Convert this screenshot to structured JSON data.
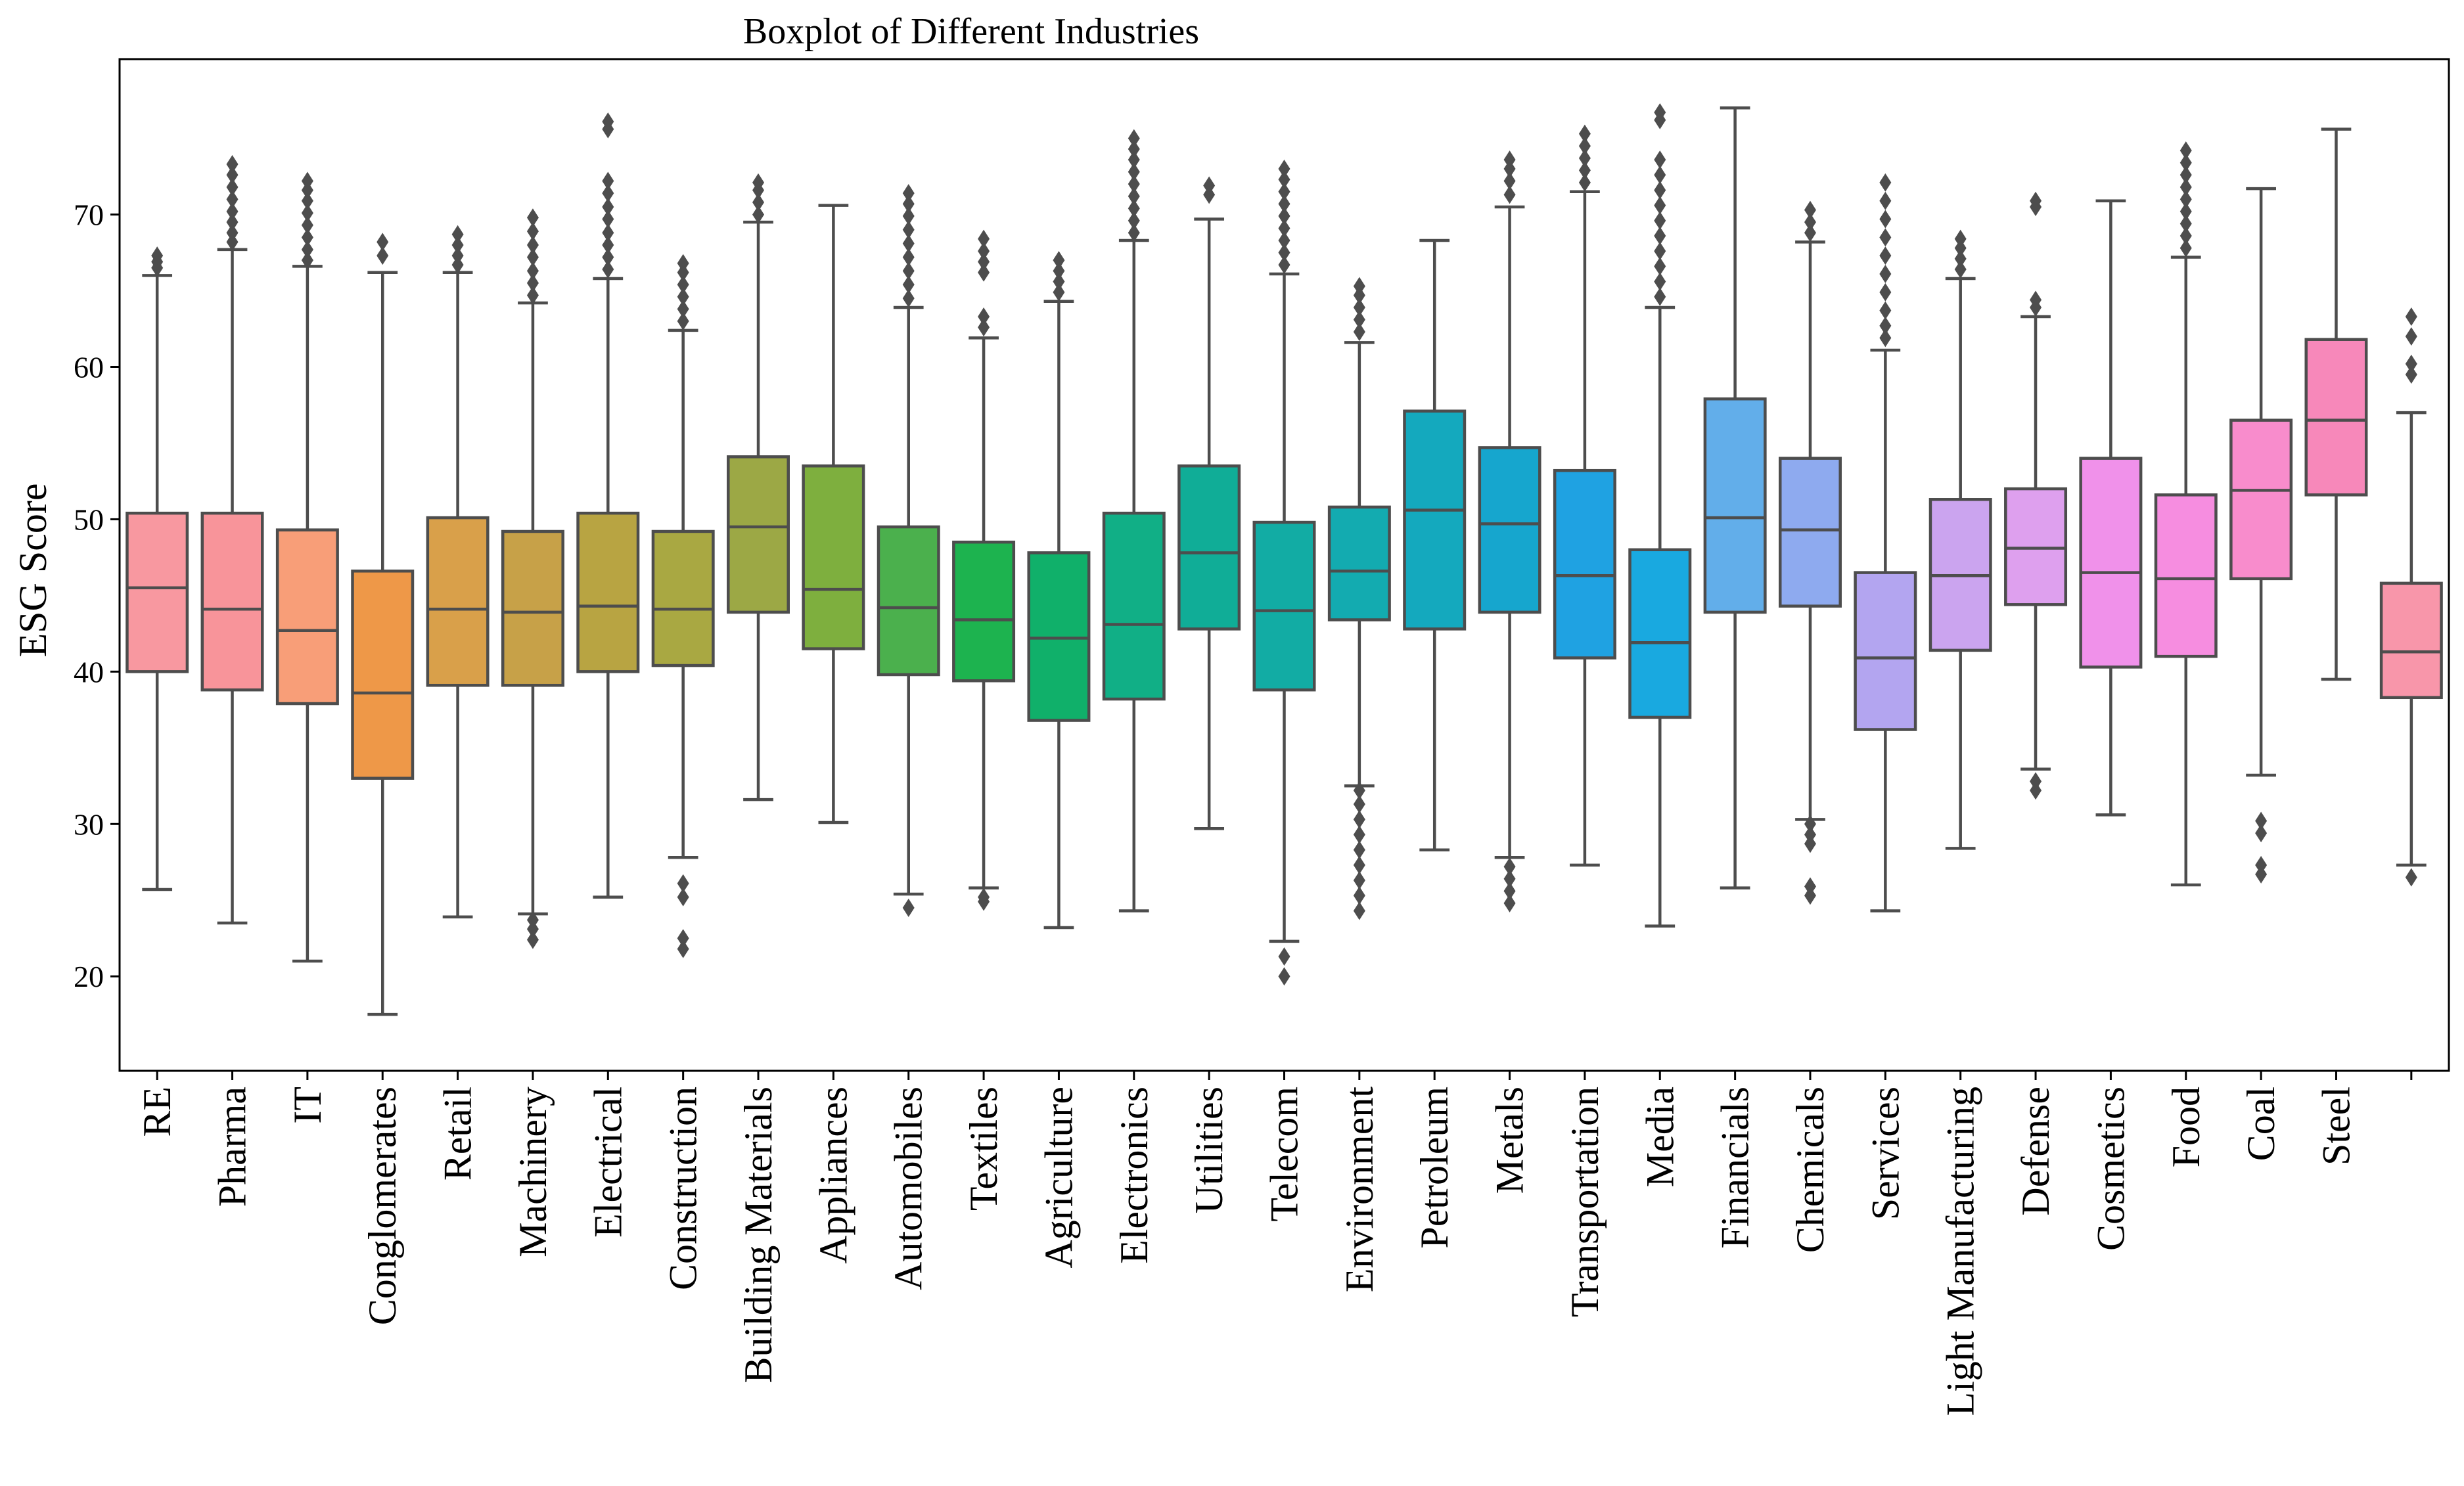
{
  "chart_data": {
    "type": "boxplot",
    "title": "Boxplot of Different Industries",
    "xlabel": "",
    "ylabel": "ESG Score",
    "ylim": [
      13.8,
      80.2
    ],
    "yticks": [
      20,
      30,
      40,
      50,
      60,
      70
    ],
    "grid": false,
    "legend": "none",
    "categories": [
      "RE",
      "Pharma",
      "IT",
      "Conglomerates",
      "Retail",
      "Machinery",
      "Electrical",
      "Construction",
      "Building Materials",
      "Appliances",
      "Automobiles",
      "Textiles",
      "Agriculture",
      "Electronics",
      "Utilities",
      "Telecom",
      "Environment",
      "Petroleum",
      "Metals",
      "Transportation",
      "Media",
      "Financials",
      "Chemicals",
      "Services",
      "Light Manufacturing",
      "Defense",
      "Cosmetics",
      "Food",
      "Coal",
      "Steel",
      ""
    ],
    "colors": [
      "#F898A0",
      "#F8949A",
      "#F89E78",
      "#EE9848",
      "#D9A04A",
      "#C7A148",
      "#B8A442",
      "#A9A842",
      "#9CA845",
      "#7EAF3E",
      "#4BB04D",
      "#1DB34F",
      "#10B06A",
      "#11AF86",
      "#10AD97",
      "#12ACA4",
      "#13ABB0",
      "#14A9BE",
      "#16A6CE",
      "#1FA2E2",
      "#19A9E0",
      "#62AEEA",
      "#8EAAEF",
      "#B3A5F0",
      "#CBA4EF",
      "#DEA0EE",
      "#F091EA",
      "#F68DE0",
      "#F88CCC",
      "#F788BA",
      "#F896AA"
    ],
    "boxes": [
      {
        "q1": 40.0,
        "median": 45.5,
        "q3": 50.4,
        "whisker_low": 25.7,
        "whisker_high": 66.0,
        "outliers": [
          66.5,
          66.9,
          67.3
        ]
      },
      {
        "q1": 38.8,
        "median": 44.1,
        "q3": 50.4,
        "whisker_low": 23.5,
        "whisker_high": 67.7,
        "outliers": [
          68.2,
          68.8,
          69.5,
          70.2,
          71.0,
          71.8,
          72.6,
          73.3
        ]
      },
      {
        "q1": 37.9,
        "median": 42.7,
        "q3": 49.3,
        "whisker_low": 21.0,
        "whisker_high": 66.6,
        "outliers": [
          67.0,
          67.7,
          68.5,
          69.3,
          70.1,
          70.9,
          71.6,
          72.2
        ]
      },
      {
        "q1": 33.0,
        "median": 38.6,
        "q3": 46.6,
        "whisker_low": 17.5,
        "whisker_high": 66.2,
        "outliers": [
          67.3,
          68.2
        ]
      },
      {
        "q1": 39.1,
        "median": 44.1,
        "q3": 50.1,
        "whisker_low": 23.9,
        "whisker_high": 66.2,
        "outliers": [
          66.7,
          67.3,
          68.0,
          68.7
        ]
      },
      {
        "q1": 39.1,
        "median": 43.9,
        "q3": 49.2,
        "whisker_low": 24.1,
        "whisker_high": 64.2,
        "outliers": [
          22.4,
          23.1,
          23.7,
          64.7,
          65.5,
          66.3,
          67.2,
          68.0,
          68.9,
          69.8
        ]
      },
      {
        "q1": 40.0,
        "median": 44.3,
        "q3": 50.4,
        "whisker_low": 25.2,
        "whisker_high": 65.8,
        "outliers": [
          66.4,
          67.2,
          68.0,
          68.8,
          69.7,
          70.5,
          71.4,
          72.2,
          75.6,
          76.1
        ]
      },
      {
        "q1": 40.4,
        "median": 44.1,
        "q3": 49.2,
        "whisker_low": 27.8,
        "whisker_high": 62.4,
        "outliers": [
          21.8,
          22.5,
          25.2,
          26.1,
          63.0,
          63.8,
          64.6,
          65.4,
          66.2,
          66.8
        ]
      },
      {
        "q1": 43.9,
        "median": 49.5,
        "q3": 54.1,
        "whisker_low": 31.6,
        "whisker_high": 69.5,
        "outliers": [
          70.0,
          70.8,
          71.6,
          72.1
        ]
      },
      {
        "q1": 41.5,
        "median": 45.4,
        "q3": 53.5,
        "whisker_low": 30.1,
        "whisker_high": 70.6,
        "outliers": []
      },
      {
        "q1": 39.8,
        "median": 44.2,
        "q3": 49.5,
        "whisker_low": 25.4,
        "whisker_high": 63.9,
        "outliers": [
          24.5,
          64.5,
          65.4,
          66.3,
          67.2,
          68.1,
          69.0,
          69.9,
          70.7,
          71.4
        ]
      },
      {
        "q1": 39.4,
        "median": 43.4,
        "q3": 48.5,
        "whisker_low": 25.8,
        "whisker_high": 61.9,
        "outliers": [
          24.9,
          25.2,
          62.6,
          63.3,
          66.2,
          66.9,
          67.6,
          68.4
        ]
      },
      {
        "q1": 36.8,
        "median": 42.2,
        "q3": 47.8,
        "whisker_low": 23.2,
        "whisker_high": 64.3,
        "outliers": [
          64.9,
          65.6,
          66.3,
          67.0
        ]
      },
      {
        "q1": 38.2,
        "median": 43.1,
        "q3": 50.4,
        "whisker_low": 24.3,
        "whisker_high": 68.3,
        "outliers": [
          68.8,
          69.6,
          70.4,
          71.2,
          72.0,
          72.8,
          73.6,
          74.3,
          75.0
        ]
      },
      {
        "q1": 42.8,
        "median": 47.8,
        "q3": 53.5,
        "whisker_low": 29.7,
        "whisker_high": 69.7,
        "outliers": [
          71.3,
          71.9
        ]
      },
      {
        "q1": 38.8,
        "median": 44.0,
        "q3": 49.8,
        "whisker_low": 22.3,
        "whisker_high": 66.1,
        "outliers": [
          20.0,
          21.3,
          66.7,
          67.5,
          68.3,
          69.1,
          69.9,
          70.7,
          71.5,
          72.3,
          73.0
        ]
      },
      {
        "q1": 43.4,
        "median": 46.6,
        "q3": 50.8,
        "whisker_low": 32.5,
        "whisker_high": 61.6,
        "outliers": [
          24.3,
          25.3,
          26.3,
          27.3,
          28.3,
          29.3,
          30.3,
          31.3,
          32.2,
          62.3,
          63.1,
          63.9,
          64.7,
          65.3
        ]
      },
      {
        "q1": 42.8,
        "median": 50.6,
        "q3": 57.1,
        "whisker_low": 28.3,
        "whisker_high": 68.3,
        "outliers": []
      },
      {
        "q1": 43.9,
        "median": 49.7,
        "q3": 54.7,
        "whisker_low": 27.8,
        "whisker_high": 70.5,
        "outliers": [
          24.8,
          25.6,
          26.4,
          27.2,
          71.3,
          72.2,
          73.0,
          73.6
        ]
      },
      {
        "q1": 40.9,
        "median": 46.3,
        "q3": 53.2,
        "whisker_low": 27.3,
        "whisker_high": 71.5,
        "outliers": [
          72.1,
          72.9,
          73.7,
          74.5,
          75.3
        ]
      },
      {
        "q1": 37.0,
        "median": 41.9,
        "q3": 48.0,
        "whisker_low": 23.3,
        "whisker_high": 63.9,
        "outliers": [
          64.6,
          65.6,
          66.6,
          67.6,
          68.6,
          69.6,
          70.6,
          71.6,
          72.6,
          73.6,
          76.2,
          76.7
        ]
      },
      {
        "q1": 43.9,
        "median": 50.1,
        "q3": 57.9,
        "whisker_low": 25.8,
        "whisker_high": 77.0,
        "outliers": []
      },
      {
        "q1": 44.3,
        "median": 49.3,
        "q3": 54.0,
        "whisker_low": 30.3,
        "whisker_high": 68.2,
        "outliers": [
          25.3,
          25.9,
          28.7,
          29.3,
          30.0,
          68.8,
          69.5,
          70.3
        ]
      },
      {
        "q1": 36.2,
        "median": 40.9,
        "q3": 46.5,
        "whisker_low": 24.3,
        "whisker_high": 61.1,
        "outliers": [
          61.9,
          62.7,
          63.7,
          64.9,
          66.1,
          67.3,
          68.5,
          69.7,
          70.9,
          72.1
        ]
      },
      {
        "q1": 41.4,
        "median": 46.3,
        "q3": 51.3,
        "whisker_low": 28.4,
        "whisker_high": 65.8,
        "outliers": [
          66.4,
          67.1,
          67.8,
          68.4
        ]
      },
      {
        "q1": 44.4,
        "median": 48.1,
        "q3": 52.0,
        "whisker_low": 33.6,
        "whisker_high": 63.3,
        "outliers": [
          32.2,
          32.8,
          63.9,
          64.4,
          70.5,
          70.9
        ]
      },
      {
        "q1": 40.3,
        "median": 46.5,
        "q3": 54.0,
        "whisker_low": 30.6,
        "whisker_high": 70.9,
        "outliers": []
      },
      {
        "q1": 41.0,
        "median": 46.1,
        "q3": 51.6,
        "whisker_low": 26.0,
        "whisker_high": 67.2,
        "outliers": [
          67.8,
          68.6,
          69.4,
          70.2,
          71.0,
          71.8,
          72.6,
          73.4,
          74.2
        ]
      },
      {
        "q1": 46.1,
        "median": 51.9,
        "q3": 56.5,
        "whisker_low": 33.2,
        "whisker_high": 71.7,
        "outliers": [
          26.7,
          27.3,
          29.4,
          30.2
        ]
      },
      {
        "q1": 51.6,
        "median": 56.5,
        "q3": 61.8,
        "whisker_low": 39.5,
        "whisker_high": 75.6,
        "outliers": []
      },
      {
        "q1": 38.3,
        "median": 41.3,
        "q3": 45.8,
        "whisker_low": 27.3,
        "whisker_high": 57.0,
        "outliers": [
          26.5,
          59.5,
          60.2,
          62.0,
          63.3
        ]
      }
    ]
  }
}
